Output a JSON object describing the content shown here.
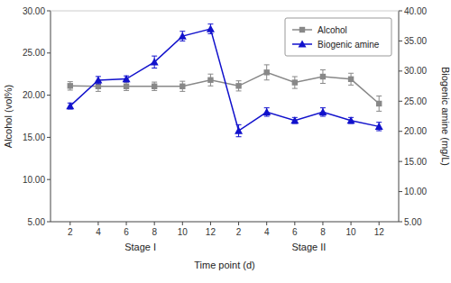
{
  "chart_data": {
    "type": "line",
    "categories": [
      "2",
      "4",
      "6",
      "8",
      "10",
      "12",
      "2",
      "4",
      "6",
      "8",
      "10",
      "12"
    ],
    "xlabel": "Time point (d)",
    "ylabel": "Alcohol (vol%)",
    "y2label": "Biogenic amine (mg/L)",
    "annotations": [
      "Stage I",
      "Stage II"
    ],
    "ylim": [
      5.0,
      30.0
    ],
    "yticks": [
      {
        "value": 5.0,
        "label": "5.00"
      },
      {
        "value": 10.0,
        "label": "10.00"
      },
      {
        "value": 15.0,
        "label": "15.00"
      },
      {
        "value": 20.0,
        "label": "20.00"
      },
      {
        "value": 25.0,
        "label": "25.00"
      },
      {
        "value": 30.0,
        "label": "30.00"
      }
    ],
    "y2lim": [
      5.0,
      40.0
    ],
    "y2ticks": [
      {
        "value": 5.0,
        "label": "5.00"
      },
      {
        "value": 10.0,
        "label": "10.00"
      },
      {
        "value": 15.0,
        "label": "15.00"
      },
      {
        "value": 20.0,
        "label": "20.00"
      },
      {
        "value": 25.0,
        "label": "25.00"
      },
      {
        "value": 30.0,
        "label": "30.00"
      },
      {
        "value": 35.0,
        "label": "35.00"
      },
      {
        "value": 40.0,
        "label": "40.00"
      }
    ],
    "grid": false,
    "legend": "upper right",
    "series": [
      {
        "name": "Alcohol",
        "color": "#888888",
        "marker": "square",
        "values": [
          21.1,
          21.05,
          21.05,
          21.05,
          21.05,
          21.8,
          21.1,
          22.7,
          21.5,
          22.2,
          21.9,
          19.0
        ],
        "errors": [
          0.5,
          0.6,
          0.5,
          0.5,
          0.6,
          0.7,
          0.6,
          0.9,
          0.7,
          0.8,
          0.7,
          0.9
        ]
      },
      {
        "name": "Biogenic amine",
        "color": "#1111CC",
        "marker": "triangle",
        "axis": "y2",
        "values": [
          24.2,
          28.5,
          28.7,
          31.5,
          35.8,
          37.0,
          20.1,
          23.2,
          21.8,
          23.2,
          21.8,
          20.8
        ],
        "errors": [
          0.5,
          0.6,
          0.5,
          1.0,
          0.8,
          0.8,
          1.0,
          0.7,
          0.5,
          0.7,
          0.5,
          0.7
        ]
      }
    ]
  }
}
